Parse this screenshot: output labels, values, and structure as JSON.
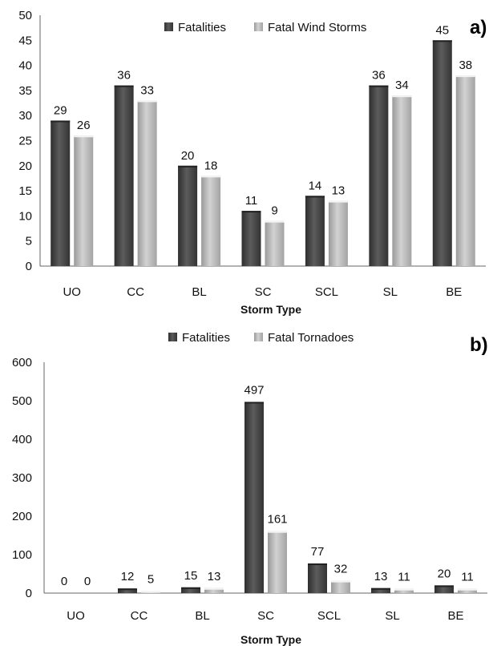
{
  "chart_data": [
    {
      "type": "bar",
      "panel_label": "a)",
      "categories": [
        "UO",
        "CC",
        "BL",
        "SC",
        "SCL",
        "SL",
        "BE"
      ],
      "series": [
        {
          "name": "Fatalities",
          "values": [
            29,
            36,
            20,
            11,
            14,
            36,
            45
          ],
          "color": "#4a4a4a"
        },
        {
          "name": "Fatal Wind Storms",
          "values": [
            26,
            33,
            18,
            9,
            13,
            34,
            38
          ],
          "color": "#b3b3b3"
        }
      ],
      "xlabel": "Storm Type",
      "ylim": [
        0,
        50
      ],
      "yticks": [
        0,
        5,
        10,
        15,
        20,
        25,
        30,
        35,
        40,
        45,
        50
      ],
      "grid": false,
      "legend": "top"
    },
    {
      "type": "bar",
      "panel_label": "b)",
      "categories": [
        "UO",
        "CC",
        "BL",
        "SC",
        "SCL",
        "SL",
        "BE"
      ],
      "series": [
        {
          "name": "Fatalities",
          "values": [
            0,
            12,
            15,
            497,
            77,
            13,
            20
          ],
          "color": "#4a4a4a"
        },
        {
          "name": "Fatal Tornadoes",
          "values": [
            0,
            5,
            13,
            161,
            32,
            11,
            11
          ],
          "color": "#b3b3b3"
        }
      ],
      "xlabel": "Storm Type",
      "ylim": [
        0,
        600
      ],
      "yticks": [
        0,
        100,
        200,
        300,
        400,
        500,
        600
      ],
      "grid": false,
      "legend": "top"
    }
  ]
}
